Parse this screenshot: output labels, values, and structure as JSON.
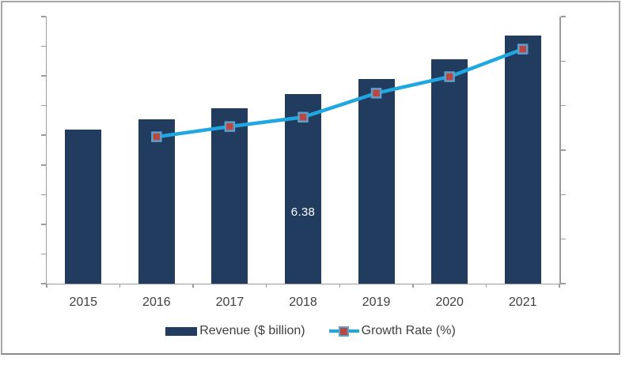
{
  "chart_data": {
    "type": "bar",
    "subtype": "combo-bar-line",
    "title": "",
    "xlabel": "",
    "ylabel": "",
    "grid": false,
    "legend_position": "bottom",
    "categories": [
      "2015",
      "2016",
      "2017",
      "2018",
      "2019",
      "2020",
      "2021"
    ],
    "series": [
      {
        "name": "Revenue ($ billion)",
        "type": "bar",
        "axis": "left",
        "color": "#223C60",
        "values": [
          5.2,
          5.55,
          5.9,
          6.38,
          6.9,
          7.55,
          8.35
        ]
      },
      {
        "name": "Growth Rate (%)",
        "type": "line",
        "axis": "right",
        "color": "#21A7E0",
        "marker": {
          "shape": "square",
          "fill": "#BB4743",
          "border": "#5E9FCC"
        },
        "values": [
          null,
          3.3,
          3.53,
          3.74,
          4.28,
          4.65,
          5.27
        ]
      }
    ],
    "data_labels": [
      {
        "series": "Revenue ($ billion)",
        "category": "2018",
        "text": "6.38",
        "color": "#FFFFFF"
      }
    ],
    "axes": {
      "left": {
        "min": 0,
        "max": 9,
        "tick_count": 10,
        "tick_labels_visible": false
      },
      "right": {
        "min": 0,
        "max": 6,
        "tick_count": 7,
        "tick_labels_visible": false
      },
      "x": {
        "tick_labels_visible": true
      }
    }
  },
  "styles": {
    "axis_color": "#9C9C9C",
    "frame_border_color": "#A6A6A6",
    "label_color": "#404040",
    "background": "#FFFFFF"
  }
}
